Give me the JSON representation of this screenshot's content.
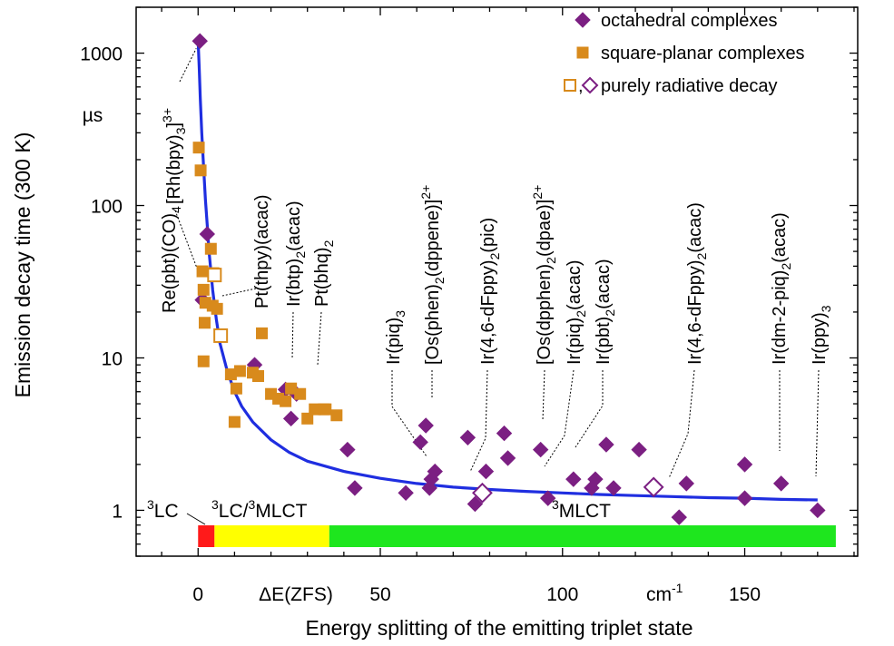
{
  "chart_data": {
    "type": "scatter",
    "title": "",
    "xlabel": "Energy splitting of the emitting triplet state",
    "ylabel": "Emission decay time (300 K)",
    "y_unit": "µs",
    "x_axis_label_inside": "ΔE(ZFS)",
    "x_unit": "cm",
    "x_unit_sup": "-1",
    "xlim": [
      -17,
      181
    ],
    "ylim": [
      0.5,
      2000
    ],
    "y_scale": "log",
    "x_ticks": [
      0,
      50,
      100,
      150
    ],
    "x_tick_labels": [
      "0",
      "50",
      "100",
      "150"
    ],
    "y_ticks": [
      1,
      10,
      100,
      1000
    ],
    "y_tick_labels": [
      "1",
      "10",
      "100",
      "1000"
    ],
    "grid": false,
    "legend": {
      "placement": "top-right",
      "entries": [
        {
          "label": "octahedral complexes",
          "marker": "diamond",
          "color": "#7b1f82"
        },
        {
          "label": "square-planar complexes",
          "marker": "square",
          "color": "#d88a1c"
        },
        {
          "label": "purely radiative decay",
          "marker": "open-square-diamond",
          "sep": ","
        }
      ]
    },
    "series": [
      {
        "name": "octahedral complexes",
        "marker": "diamond",
        "color": "#7b1f82",
        "x": [
          0.5,
          2.5,
          1.2,
          15.5,
          24,
          25.5,
          27,
          41,
          43,
          57,
          61,
          62.5,
          63.5,
          64,
          65,
          74,
          76,
          79,
          84,
          85,
          94,
          96,
          103,
          108,
          109,
          112,
          114,
          121,
          132,
          134,
          150,
          150,
          160,
          170
        ],
        "y": [
          1200,
          65,
          24,
          9,
          6.2,
          4,
          5.8,
          2.5,
          1.4,
          1.3,
          2.8,
          3.6,
          1.4,
          1.6,
          1.8,
          3,
          1.1,
          1.8,
          3.2,
          2.2,
          2.5,
          1.2,
          1.6,
          1.4,
          1.6,
          2.7,
          1.4,
          2.5,
          0.9,
          1.5,
          2,
          1.2,
          1.5,
          1
        ]
      },
      {
        "name": "square-planar complexes",
        "marker": "square",
        "color": "#d88a1c",
        "x": [
          0.2,
          0.7,
          1.2,
          1.5,
          2,
          1.8,
          3.5,
          4,
          4.2,
          5.2,
          1.5,
          9,
          10,
          10.5,
          11.5,
          15,
          16.5,
          17.5,
          20,
          22,
          24,
          25.5,
          28,
          30,
          32,
          34.5,
          35,
          38
        ],
        "y": [
          240,
          170,
          37,
          28,
          23,
          17,
          52,
          22,
          36,
          21,
          9.5,
          7.8,
          3.8,
          6.3,
          8.2,
          8,
          7.6,
          14.5,
          5.8,
          5.4,
          5.2,
          6.3,
          5.8,
          4,
          4.6,
          4.6,
          4.6,
          4.2
        ]
      },
      {
        "name": "purely radiative decay",
        "marker": "open-square",
        "color": "#d88a1c",
        "x": [
          4.5,
          6.2
        ],
        "y": [
          35,
          14
        ]
      },
      {
        "name": "purely radiative decay",
        "marker": "open-diamond",
        "color": "#7b1f82",
        "x": [
          78,
          125
        ],
        "y": [
          1.3,
          1.42
        ]
      }
    ],
    "fit_curve": {
      "color": "#1f2ee0",
      "x": [
        0,
        0.3,
        0.6,
        1,
        1.5,
        2,
        2.5,
        3,
        4,
        5,
        6,
        8,
        10,
        12,
        15,
        20,
        25,
        30,
        40,
        50,
        60,
        70,
        80,
        90,
        100,
        110,
        120,
        130,
        140,
        150,
        160,
        170
      ],
      "y": [
        1200,
        800,
        500,
        300,
        180,
        110,
        75,
        50,
        28,
        18,
        12.5,
        8.2,
        6,
        4.8,
        3.8,
        2.9,
        2.4,
        2.1,
        1.8,
        1.62,
        1.5,
        1.42,
        1.37,
        1.33,
        1.3,
        1.27,
        1.25,
        1.23,
        1.21,
        1.2,
        1.18,
        1.17
      ]
    },
    "regions": [
      {
        "label": "LC",
        "label_sup": "3",
        "x0": 0,
        "x1": 4.5,
        "color": "#ff1a1a"
      },
      {
        "label": "LC/",
        "label_sup": "3",
        "label2": "MLCT",
        "label2_sup": "3",
        "x0": 4.5,
        "x1": 36,
        "color": "#ffff00"
      },
      {
        "label": "MLCT",
        "label_sup": "3",
        "x0": 36,
        "x1": 175,
        "color": "#1ee61e"
      }
    ],
    "annotations": [
      {
        "parts": [
          [
            "[Rh(bpy)",
            ""
          ],
          [
            "3",
            "sub"
          ],
          [
            "]",
            ""
          ],
          [
            "3+",
            "sup"
          ]
        ],
        "point": [
          0.5,
          1200
        ]
      },
      {
        "parts": [
          [
            "Re(pbt)(CO)",
            ""
          ],
          [
            "4",
            "sub"
          ]
        ],
        "point": [
          1.2,
          37
        ]
      },
      {
        "parts": [
          [
            "Pt(thpy)(acac)",
            ""
          ]
        ],
        "point": [
          4.5,
          24
        ]
      },
      {
        "parts": [
          [
            "Ir(btp)",
            ""
          ],
          [
            "2",
            "sub"
          ],
          [
            "(acac)",
            ""
          ]
        ],
        "point": [
          15.5,
          9
        ]
      },
      {
        "parts": [
          [
            "Pt(bhq)",
            ""
          ],
          [
            "2",
            "sub"
          ]
        ],
        "point": [
          24,
          6.2
        ]
      },
      {
        "parts": [
          [
            "Ir(piq)",
            ""
          ],
          [
            "3",
            "sub"
          ]
        ],
        "point": [
          62,
          1.35
        ]
      },
      {
        "parts": [
          [
            "[Os(phen)",
            ""
          ],
          [
            "2",
            "sub"
          ],
          [
            "(dppene)]",
            ""
          ],
          [
            "2+",
            "sup"
          ]
        ],
        "point": [
          63.5,
          3.6
        ]
      },
      {
        "parts": [
          [
            "Ir(4,6-dFppy)",
            ""
          ],
          [
            "2",
            "sub"
          ],
          [
            "(pic)",
            ""
          ]
        ],
        "point": [
          75,
          1.2
        ]
      },
      {
        "parts": [
          [
            "[Os(dpphen)",
            ""
          ],
          [
            "2",
            "sub"
          ],
          [
            "(dpae)]",
            ""
          ],
          [
            "2+",
            "sup"
          ]
        ],
        "point": [
          94,
          2.5
        ]
      },
      {
        "parts": [
          [
            "Ir(piq)",
            ""
          ],
          [
            "2",
            "sub"
          ],
          [
            "(acac)",
            ""
          ]
        ],
        "point": [
          96,
          1.2
        ]
      },
      {
        "parts": [
          [
            "Ir(pbt)",
            ""
          ],
          [
            "2",
            "sub"
          ],
          [
            "(acac)",
            ""
          ]
        ],
        "point": [
          103,
          1.6
        ]
      },
      {
        "parts": [
          [
            "Ir(4,6-dFppy)",
            ""
          ],
          [
            "2",
            "sub"
          ],
          [
            "(acac)",
            ""
          ]
        ],
        "point": [
          126,
          1.3
        ]
      },
      {
        "parts": [
          [
            "Ir(dm-2-piq)",
            ""
          ],
          [
            "2",
            "sub"
          ],
          [
            "(acac)",
            ""
          ]
        ],
        "point": [
          160,
          1.5
        ]
      },
      {
        "parts": [
          [
            "Ir(ppy)",
            ""
          ],
          [
            "3",
            "sub"
          ]
        ],
        "point": [
          170,
          1
        ]
      }
    ]
  }
}
